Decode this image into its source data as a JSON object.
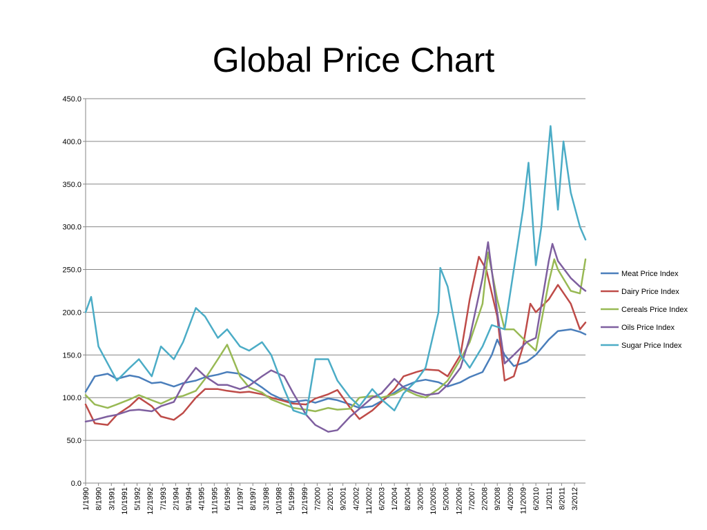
{
  "slide": {
    "title": "Global Price Chart"
  },
  "chart_data": {
    "type": "line",
    "title": "Global Price Chart",
    "xlabel": "",
    "ylabel": "",
    "ylim": [
      0,
      450
    ],
    "yticks": [
      "0.0",
      "50.0",
      "100.0",
      "150.0",
      "200.0",
      "250.0",
      "300.0",
      "350.0",
      "400.0",
      "450.0"
    ],
    "xticks": [
      "1/1990",
      "8/1990",
      "3/1991",
      "10/1991",
      "5/1992",
      "12/1992",
      "7/1993",
      "2/1994",
      "9/1994",
      "4/1995",
      "11/1995",
      "6/1996",
      "1/1997",
      "8/1997",
      "3/1998",
      "10/1998",
      "5/1999",
      "12/1999",
      "7/2000",
      "2/2001",
      "9/2001",
      "4/2002",
      "11/2002",
      "6/2003",
      "1/2004",
      "8/2004",
      "3/2005",
      "10/2005",
      "5/2006",
      "12/2006",
      "7/2007",
      "2/2008",
      "9/2008",
      "4/2009",
      "11/2009",
      "6/2010",
      "1/2011",
      "8/2011",
      "3/2012"
    ],
    "x_range": [
      "1/1990",
      "9/2012"
    ],
    "grid": "horizontal",
    "legend_position": "right",
    "series": [
      {
        "name": "Meat Price Index",
        "color": "#4a7ebb",
        "points": [
          [
            "1/1990",
            107
          ],
          [
            "6/1990",
            125
          ],
          [
            "1/1991",
            128
          ],
          [
            "6/1991",
            122
          ],
          [
            "1/1992",
            126
          ],
          [
            "6/1992",
            124
          ],
          [
            "1/1993",
            117
          ],
          [
            "6/1993",
            118
          ],
          [
            "1/1994",
            113
          ],
          [
            "6/1994",
            117
          ],
          [
            "1/1995",
            120
          ],
          [
            "6/1995",
            124
          ],
          [
            "1/1996",
            127
          ],
          [
            "6/1996",
            130
          ],
          [
            "1/1997",
            128
          ],
          [
            "6/1997",
            122
          ],
          [
            "1/1998",
            112
          ],
          [
            "6/1998",
            104
          ],
          [
            "1/1999",
            97
          ],
          [
            "6/1999",
            95
          ],
          [
            "1/2000",
            97
          ],
          [
            "6/2000",
            94
          ],
          [
            "1/2001",
            99
          ],
          [
            "6/2001",
            97
          ],
          [
            "1/2002",
            92
          ],
          [
            "6/2002",
            88
          ],
          [
            "1/2003",
            90
          ],
          [
            "6/2003",
            96
          ],
          [
            "1/2004",
            106
          ],
          [
            "6/2004",
            113
          ],
          [
            "1/2005",
            119
          ],
          [
            "6/2005",
            121
          ],
          [
            "1/2006",
            118
          ],
          [
            "6/2006",
            113
          ],
          [
            "1/2007",
            118
          ],
          [
            "6/2007",
            124
          ],
          [
            "1/2008",
            130
          ],
          [
            "6/2008",
            150
          ],
          [
            "9/2008",
            168
          ],
          [
            "1/2009",
            150
          ],
          [
            "6/2009",
            137
          ],
          [
            "1/2010",
            142
          ],
          [
            "6/2010",
            150
          ],
          [
            "1/2011",
            168
          ],
          [
            "6/2011",
            178
          ],
          [
            "1/2012",
            180
          ],
          [
            "6/2012",
            177
          ],
          [
            "9/2012",
            174
          ]
        ]
      },
      {
        "name": "Dairy Price Index",
        "color": "#be4b48",
        "points": [
          [
            "1/1990",
            92
          ],
          [
            "6/1990",
            70
          ],
          [
            "1/1991",
            68
          ],
          [
            "6/1991",
            80
          ],
          [
            "1/1992",
            90
          ],
          [
            "6/1992",
            100
          ],
          [
            "1/1993",
            90
          ],
          [
            "6/1993",
            78
          ],
          [
            "1/1994",
            74
          ],
          [
            "6/1994",
            82
          ],
          [
            "1/1995",
            100
          ],
          [
            "6/1995",
            110
          ],
          [
            "1/1996",
            110
          ],
          [
            "6/1996",
            108
          ],
          [
            "1/1997",
            106
          ],
          [
            "6/1997",
            107
          ],
          [
            "1/1998",
            104
          ],
          [
            "6/1998",
            100
          ],
          [
            "1/1999",
            96
          ],
          [
            "6/1999",
            93
          ],
          [
            "1/2000",
            92
          ],
          [
            "6/2000",
            99
          ],
          [
            "1/2001",
            104
          ],
          [
            "6/2001",
            109
          ],
          [
            "1/2002",
            88
          ],
          [
            "6/2002",
            75
          ],
          [
            "1/2003",
            85
          ],
          [
            "6/2003",
            95
          ],
          [
            "1/2004",
            110
          ],
          [
            "6/2004",
            125
          ],
          [
            "1/2005",
            130
          ],
          [
            "6/2005",
            133
          ],
          [
            "1/2006",
            132
          ],
          [
            "6/2006",
            125
          ],
          [
            "1/2007",
            150
          ],
          [
            "6/2007",
            215
          ],
          [
            "11/2007",
            265
          ],
          [
            "3/2008",
            250
          ],
          [
            "9/2008",
            195
          ],
          [
            "1/2009",
            120
          ],
          [
            "6/2009",
            125
          ],
          [
            "11/2009",
            160
          ],
          [
            "3/2010",
            210
          ],
          [
            "6/2010",
            200
          ],
          [
            "1/2011",
            215
          ],
          [
            "6/2011",
            232
          ],
          [
            "1/2012",
            210
          ],
          [
            "6/2012",
            180
          ],
          [
            "9/2012",
            188
          ]
        ]
      },
      {
        "name": "Cereals Price Index",
        "color": "#98b954",
        "points": [
          [
            "1/1990",
            103
          ],
          [
            "6/1990",
            92
          ],
          [
            "1/1991",
            88
          ],
          [
            "6/1991",
            92
          ],
          [
            "1/1992",
            98
          ],
          [
            "6/1992",
            103
          ],
          [
            "1/1993",
            97
          ],
          [
            "6/1993",
            93
          ],
          [
            "1/1994",
            100
          ],
          [
            "6/1994",
            102
          ],
          [
            "1/1995",
            108
          ],
          [
            "6/1995",
            122
          ],
          [
            "1/1996",
            145
          ],
          [
            "6/1996",
            162
          ],
          [
            "1/1997",
            125
          ],
          [
            "6/1997",
            112
          ],
          [
            "1/1998",
            106
          ],
          [
            "6/1998",
            98
          ],
          [
            "1/1999",
            92
          ],
          [
            "6/1999",
            88
          ],
          [
            "1/2000",
            86
          ],
          [
            "6/2000",
            84
          ],
          [
            "1/2001",
            88
          ],
          [
            "6/2001",
            86
          ],
          [
            "1/2002",
            87
          ],
          [
            "6/2002",
            100
          ],
          [
            "1/2003",
            102
          ],
          [
            "6/2003",
            100
          ],
          [
            "1/2004",
            104
          ],
          [
            "6/2004",
            110
          ],
          [
            "1/2005",
            103
          ],
          [
            "6/2005",
            100
          ],
          [
            "1/2006",
            110
          ],
          [
            "6/2006",
            120
          ],
          [
            "1/2007",
            145
          ],
          [
            "6/2007",
            165
          ],
          [
            "1/2008",
            210
          ],
          [
            "4/2008",
            270
          ],
          [
            "9/2008",
            215
          ],
          [
            "1/2009",
            180
          ],
          [
            "6/2009",
            180
          ],
          [
            "1/2010",
            165
          ],
          [
            "6/2010",
            155
          ],
          [
            "1/2011",
            235
          ],
          [
            "4/2011",
            262
          ],
          [
            "6/2011",
            250
          ],
          [
            "1/2012",
            225
          ],
          [
            "6/2012",
            222
          ],
          [
            "9/2012",
            262
          ]
        ]
      },
      {
        "name": "Oils Price Index",
        "color": "#7e5f9f",
        "points": [
          [
            "1/1990",
            72
          ],
          [
            "6/1990",
            74
          ],
          [
            "1/1991",
            78
          ],
          [
            "6/1991",
            80
          ],
          [
            "1/1992",
            85
          ],
          [
            "6/1992",
            86
          ],
          [
            "1/1993",
            84
          ],
          [
            "6/1993",
            90
          ],
          [
            "1/1994",
            95
          ],
          [
            "6/1994",
            115
          ],
          [
            "1/1995",
            135
          ],
          [
            "6/1995",
            125
          ],
          [
            "1/1996",
            115
          ],
          [
            "6/1996",
            115
          ],
          [
            "1/1997",
            110
          ],
          [
            "6/1997",
            114
          ],
          [
            "1/1998",
            125
          ],
          [
            "6/1998",
            132
          ],
          [
            "1/1999",
            125
          ],
          [
            "6/1999",
            105
          ],
          [
            "1/2000",
            80
          ],
          [
            "6/2000",
            68
          ],
          [
            "1/2001",
            60
          ],
          [
            "6/2001",
            62
          ],
          [
            "1/2002",
            78
          ],
          [
            "6/2002",
            87
          ],
          [
            "1/2003",
            100
          ],
          [
            "6/2003",
            105
          ],
          [
            "1/2004",
            122
          ],
          [
            "6/2004",
            112
          ],
          [
            "1/2005",
            106
          ],
          [
            "6/2005",
            103
          ],
          [
            "1/2006",
            105
          ],
          [
            "6/2006",
            115
          ],
          [
            "1/2007",
            135
          ],
          [
            "6/2007",
            170
          ],
          [
            "1/2008",
            240
          ],
          [
            "4/2008",
            282
          ],
          [
            "9/2008",
            200
          ],
          [
            "1/2009",
            140
          ],
          [
            "6/2009",
            150
          ],
          [
            "1/2010",
            165
          ],
          [
            "6/2010",
            170
          ],
          [
            "1/2011",
            260
          ],
          [
            "3/2011",
            280
          ],
          [
            "6/2011",
            260
          ],
          [
            "1/2012",
            240
          ],
          [
            "6/2012",
            230
          ],
          [
            "9/2012",
            225
          ]
        ]
      },
      {
        "name": "Sugar Price Index",
        "color": "#4bacc6",
        "points": [
          [
            "1/1990",
            200
          ],
          [
            "4/1990",
            218
          ],
          [
            "8/1990",
            160
          ],
          [
            "1/1991",
            140
          ],
          [
            "6/1991",
            120
          ],
          [
            "1/1992",
            135
          ],
          [
            "6/1992",
            145
          ],
          [
            "1/1993",
            125
          ],
          [
            "6/1993",
            160
          ],
          [
            "1/1994",
            145
          ],
          [
            "6/1994",
            165
          ],
          [
            "1/1995",
            205
          ],
          [
            "6/1995",
            195
          ],
          [
            "1/1996",
            170
          ],
          [
            "6/1996",
            180
          ],
          [
            "1/1997",
            160
          ],
          [
            "6/1997",
            155
          ],
          [
            "1/1998",
            165
          ],
          [
            "6/1998",
            150
          ],
          [
            "1/1999",
            110
          ],
          [
            "6/1999",
            85
          ],
          [
            "1/2000",
            80
          ],
          [
            "6/2000",
            145
          ],
          [
            "1/2001",
            145
          ],
          [
            "6/2001",
            120
          ],
          [
            "1/2002",
            100
          ],
          [
            "6/2002",
            90
          ],
          [
            "1/2003",
            110
          ],
          [
            "6/2003",
            98
          ],
          [
            "1/2004",
            85
          ],
          [
            "6/2004",
            105
          ],
          [
            "1/2005",
            120
          ],
          [
            "6/2005",
            135
          ],
          [
            "1/2006",
            200
          ],
          [
            "2/2006",
            252
          ],
          [
            "6/2006",
            230
          ],
          [
            "1/2007",
            150
          ],
          [
            "6/2007",
            135
          ],
          [
            "1/2008",
            160
          ],
          [
            "6/2008",
            185
          ],
          [
            "1/2009",
            180
          ],
          [
            "6/2009",
            250
          ],
          [
            "11/2009",
            320
          ],
          [
            "2/2010",
            375
          ],
          [
            "6/2010",
            255
          ],
          [
            "9/2010",
            300
          ],
          [
            "2/2011",
            418
          ],
          [
            "6/2011",
            320
          ],
          [
            "9/2011",
            400
          ],
          [
            "1/2012",
            340
          ],
          [
            "6/2012",
            300
          ],
          [
            "9/2012",
            285
          ]
        ]
      }
    ]
  }
}
